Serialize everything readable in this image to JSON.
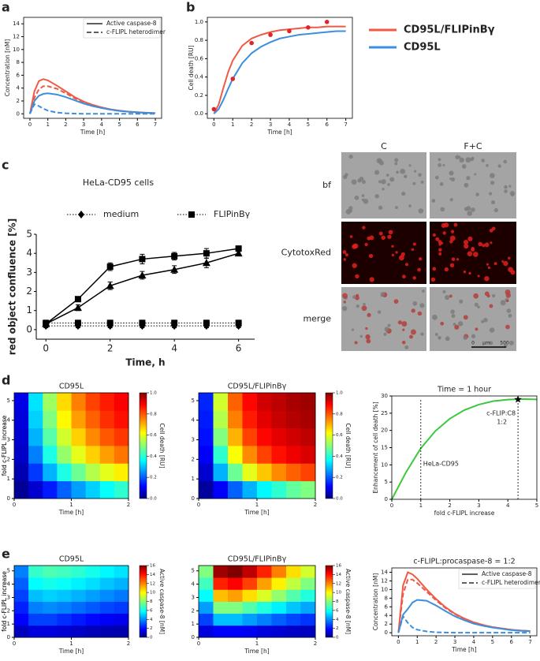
{
  "panel_labels": [
    "a",
    "b",
    "c",
    "d",
    "e"
  ],
  "color_legend": [
    {
      "name": "CD95L/FLIPinBγ",
      "color": "#ef5a45"
    },
    {
      "name": "CD95L",
      "color": "#3b8fdc"
    }
  ],
  "image_panel": {
    "columns": [
      "C",
      "F+C"
    ],
    "rows": [
      "bf",
      "CytotoxRed",
      "merge"
    ],
    "scale_bar": [
      "0",
      "µm",
      "500"
    ]
  },
  "chart_data": [
    {
      "type": "line",
      "xlabel": "Time [h]",
      "ylabel": "Concentration [nM]",
      "x": [
        0,
        0.25,
        0.5,
        0.75,
        1,
        1.5,
        2,
        2.5,
        3,
        3.5,
        4,
        4.5,
        5,
        5.5,
        6,
        6.5,
        7
      ],
      "xlim": [
        -0.35,
        7.35
      ],
      "xticks": [
        0,
        1,
        2,
        3,
        4,
        5,
        6,
        7
      ],
      "ylim": [
        -0.7,
        15
      ],
      "yticks": [
        0,
        2,
        4,
        6,
        8,
        10,
        12,
        14
      ],
      "line_styles": [
        {
          "label": "Active  caspase-8",
          "dash": "solid"
        },
        {
          "label": "c-FLIPL heterodimer",
          "dash": "dashed"
        }
      ],
      "series": [
        {
          "color": "#ef5a45",
          "dash": "solid",
          "values": [
            0,
            3.5,
            5.1,
            5.4,
            5.2,
            4.4,
            3.5,
            2.6,
            1.9,
            1.4,
            1.0,
            0.7,
            0.5,
            0.35,
            0.25,
            0.18,
            0.12
          ]
        },
        {
          "color": "#ef5a45",
          "dash": "dashed",
          "values": [
            0,
            2.5,
            3.8,
            4.3,
            4.3,
            3.9,
            3.2,
            2.4,
            1.8,
            1.3,
            0.9,
            0.65,
            0.45,
            0.32,
            0.22,
            0.15,
            0.1
          ]
        },
        {
          "color": "#3b8fdc",
          "dash": "solid",
          "values": [
            0,
            2.0,
            2.8,
            3.1,
            3.2,
            3.0,
            2.6,
            2.1,
            1.6,
            1.2,
            0.9,
            0.65,
            0.45,
            0.32,
            0.22,
            0.15,
            0.1
          ]
        },
        {
          "color": "#3b8fdc",
          "dash": "dashed",
          "values": [
            0,
            1.5,
            1.2,
            0.8,
            0.5,
            0.2,
            0.08,
            0.03,
            0.01,
            0,
            0,
            0,
            0,
            0,
            0,
            0,
            0
          ]
        }
      ]
    },
    {
      "type": "line",
      "xlabel": "Time [h]",
      "ylabel": "Cell death [RU]",
      "x": [
        0,
        0.25,
        0.5,
        0.75,
        1,
        1.5,
        2,
        2.5,
        3,
        3.5,
        4,
        4.5,
        5,
        5.5,
        6,
        6.5,
        7
      ],
      "xlim": [
        -0.35,
        7.35
      ],
      "xticks": [
        0,
        1,
        2,
        3,
        4,
        5,
        6,
        7
      ],
      "ylim": [
        -0.05,
        1.05
      ],
      "yticks": [
        {
          "value": 0,
          "label": "0.0"
        },
        0.2,
        0.4,
        0.6,
        0.8,
        {
          "value": 1,
          "label": "1.0"
        }
      ],
      "series": [
        {
          "color": "#ef5a45",
          "dash": "solid",
          "values": [
            0,
            0.1,
            0.28,
            0.45,
            0.58,
            0.74,
            0.82,
            0.86,
            0.89,
            0.91,
            0.92,
            0.93,
            0.94,
            0.94,
            0.95,
            0.95,
            0.95
          ]
        },
        {
          "color": "#3b8fdc",
          "dash": "solid",
          "values": [
            0,
            0.05,
            0.15,
            0.27,
            0.38,
            0.55,
            0.66,
            0.73,
            0.78,
            0.82,
            0.84,
            0.86,
            0.87,
            0.88,
            0.89,
            0.9,
            0.9
          ]
        }
      ],
      "points": {
        "color": "#e0252a",
        "x": [
          0,
          1,
          2,
          3,
          4,
          5,
          6
        ],
        "values": [
          0.05,
          0.38,
          0.77,
          0.86,
          0.9,
          0.94,
          1.0
        ]
      }
    },
    {
      "type": "errorbar",
      "title": "HeLa-CD95 cells",
      "xlabel": "Time, h",
      "ylabel": "red object confluence [%]",
      "x": [
        0,
        1,
        2,
        3,
        4,
        5,
        6
      ],
      "xlim": [
        -0.3,
        6.5
      ],
      "xticks": [
        0,
        2,
        4,
        6
      ],
      "ylim": [
        -0.5,
        5
      ],
      "yticks": [
        0,
        1,
        2,
        3,
        4,
        5
      ],
      "series": [
        {
          "name": "medium",
          "marker": "diamond",
          "dash": "dotted",
          "values": [
            0.2,
            0.2,
            0.2,
            0.2,
            0.2,
            0.2,
            0.2
          ],
          "errors": [
            0.1,
            0.1,
            0.1,
            0.1,
            0.1,
            0.1,
            0.1
          ]
        },
        {
          "name": "FLIPinBγ",
          "marker": "square",
          "dash": "dotted",
          "values": [
            0.35,
            0.35,
            0.35,
            0.35,
            0.35,
            0.35,
            0.35
          ],
          "errors": [
            0.15,
            0.15,
            0.15,
            0.15,
            0.15,
            0.15,
            0.15
          ]
        },
        {
          "marker": "square",
          "dash": "solid",
          "values": [
            0.3,
            1.6,
            3.3,
            3.7,
            3.85,
            4.0,
            4.25
          ],
          "errors": [
            0.1,
            0.1,
            0.2,
            0.25,
            0.2,
            0.25,
            0.1
          ]
        },
        {
          "marker": "triangle",
          "dash": "solid",
          "values": [
            0.3,
            1.15,
            2.3,
            2.85,
            3.15,
            3.5,
            4.0
          ],
          "errors": [
            0.1,
            0.15,
            0.2,
            0.2,
            0.2,
            0.25,
            0.1
          ]
        }
      ]
    },
    {
      "type": "heatmap",
      "title": "CD95L",
      "xlabel": "Time [h]",
      "ylabel": "fold c-FLIPL increase",
      "xlim": [
        0,
        2
      ],
      "xticks": [
        0,
        1,
        2
      ],
      "ylim": [
        0,
        5.4
      ],
      "yticks": [
        0,
        1,
        2,
        3,
        4,
        5
      ],
      "x_bins": [
        0,
        0.25,
        0.5,
        0.75,
        1,
        1.25,
        1.5,
        1.75,
        2
      ],
      "y_bins": [
        0,
        0.9,
        1.8,
        2.7,
        3.6,
        4.5,
        5.4
      ],
      "z": [
        [
          0.02,
          0.08,
          0.15,
          0.22,
          0.28,
          0.33,
          0.38,
          0.42
        ],
        [
          0.05,
          0.18,
          0.3,
          0.4,
          0.48,
          0.55,
          0.6,
          0.64
        ],
        [
          0.07,
          0.25,
          0.4,
          0.52,
          0.6,
          0.67,
          0.72,
          0.76
        ],
        [
          0.08,
          0.3,
          0.46,
          0.58,
          0.67,
          0.74,
          0.79,
          0.82
        ],
        [
          0.09,
          0.33,
          0.5,
          0.63,
          0.72,
          0.78,
          0.83,
          0.86
        ],
        [
          0.1,
          0.35,
          0.53,
          0.66,
          0.75,
          0.81,
          0.85,
          0.88
        ]
      ],
      "colorbar": {
        "label": "Cell death [RU]",
        "zlim": [
          0,
          1
        ],
        "ticks": [
          {
            "value": 0,
            "label": "0.0"
          },
          0.2,
          0.4,
          0.6,
          0.8,
          {
            "value": 1,
            "label": "1.0"
          }
        ]
      }
    },
    {
      "type": "heatmap",
      "title": "CD95L/FLIPinBγ",
      "xlabel": "Time [h]",
      "ylabel": "fold c-FLIPL increase",
      "xlim": [
        0,
        2
      ],
      "xticks": [
        0,
        1,
        2
      ],
      "ylim": [
        0,
        5.4
      ],
      "yticks": [
        0,
        1,
        2,
        3,
        4,
        5
      ],
      "x_bins": [
        0,
        0.25,
        0.5,
        0.75,
        1,
        1.25,
        1.5,
        1.75,
        2
      ],
      "y_bins": [
        0,
        0.9,
        1.8,
        2.7,
        3.6,
        4.5,
        5.4
      ],
      "z": [
        [
          0.03,
          0.12,
          0.22,
          0.3,
          0.37,
          0.42,
          0.47,
          0.5
        ],
        [
          0.08,
          0.3,
          0.48,
          0.6,
          0.68,
          0.74,
          0.78,
          0.81
        ],
        [
          0.12,
          0.42,
          0.62,
          0.74,
          0.81,
          0.86,
          0.89,
          0.91
        ],
        [
          0.14,
          0.5,
          0.7,
          0.81,
          0.87,
          0.9,
          0.92,
          0.94
        ],
        [
          0.15,
          0.55,
          0.75,
          0.85,
          0.9,
          0.93,
          0.95,
          0.96
        ],
        [
          0.16,
          0.58,
          0.78,
          0.87,
          0.92,
          0.94,
          0.96,
          0.97
        ]
      ],
      "colorbar": {
        "label": "Cell death [RU]",
        "zlim": [
          0,
          1
        ],
        "ticks": [
          {
            "value": 0,
            "label": "0.0"
          },
          0.2,
          0.4,
          0.6,
          0.8,
          {
            "value": 1,
            "label": "1.0"
          }
        ]
      }
    },
    {
      "type": "line",
      "title": "Time = 1 hour",
      "xlabel": "fold c-FLIPL increase",
      "ylabel": "Enhancement of cell death [%]",
      "x": [
        0,
        0.5,
        1,
        1.5,
        2,
        2.5,
        3,
        3.5,
        4,
        4.5,
        5
      ],
      "xlim": [
        0,
        5
      ],
      "xticks": [
        0,
        1,
        2,
        3,
        4,
        5
      ],
      "ylim": [
        0,
        30
      ],
      "yticks": [
        0,
        5,
        10,
        15,
        20,
        25,
        30
      ],
      "series": [
        {
          "color": "#3cc83c",
          "dash": "solid",
          "values": [
            0,
            8,
            14.8,
            19.8,
            23.4,
            25.9,
            27.5,
            28.5,
            28.95,
            29.1,
            29.0
          ]
        }
      ],
      "vlines": [
        1,
        4.35
      ],
      "star": {
        "x": 4.35,
        "y": 29
      },
      "annotations": [
        "HeLa-CD95",
        "c-FLIP:C8",
        "1:2"
      ]
    },
    {
      "type": "heatmap",
      "title": "CD95L",
      "xlabel": "Time [h]",
      "ylabel": "fold c-FLIPL increase",
      "xlim": [
        0,
        2
      ],
      "xticks": [
        0,
        1,
        2
      ],
      "ylim": [
        0,
        5.4
      ],
      "yticks": [
        0,
        1,
        2,
        3,
        4,
        5
      ],
      "x_bins": [
        0,
        0.25,
        0.5,
        0.75,
        1,
        1.25,
        1.5,
        1.75,
        2
      ],
      "y_bins": [
        0,
        0.9,
        1.8,
        2.7,
        3.6,
        4.5,
        5.4
      ],
      "z": [
        [
          1,
          1.5,
          1.5,
          1.3,
          1.1,
          0.9,
          0.8,
          0.7
        ],
        [
          2,
          3,
          3,
          2.7,
          2.4,
          2.1,
          1.9,
          1.7
        ],
        [
          2.5,
          4,
          4.2,
          4,
          3.7,
          3.4,
          3.1,
          2.9
        ],
        [
          3,
          5,
          5.3,
          5.1,
          4.8,
          4.5,
          4.2,
          3.9
        ],
        [
          3.5,
          6,
          6.3,
          6.1,
          5.8,
          5.5,
          5.1,
          4.8
        ],
        [
          4,
          6.8,
          7.2,
          7,
          6.7,
          6.3,
          5.9,
          5.6
        ]
      ],
      "colorbar": {
        "label": "Active caspase-8 [nM]",
        "zlim": [
          0,
          16
        ],
        "ticks": [
          0,
          2,
          4,
          6,
          8,
          10,
          12,
          14,
          16
        ]
      }
    },
    {
      "type": "heatmap",
      "title": "CD95L/FLIPinBγ",
      "xlabel": "Time [h]",
      "ylabel": "fold c-FLIPL increase",
      "xlim": [
        0,
        2
      ],
      "xticks": [
        0,
        1,
        2
      ],
      "ylim": [
        0,
        5.4
      ],
      "yticks": [
        0,
        1,
        2,
        3,
        4,
        5
      ],
      "x_bins": [
        0,
        0.25,
        0.5,
        0.75,
        1,
        1.25,
        1.5,
        1.75,
        2
      ],
      "y_bins": [
        0,
        0.9,
        1.8,
        2.7,
        3.6,
        4.5,
        5.4
      ],
      "z": [
        [
          1.5,
          2,
          2,
          1.8,
          1.5,
          1.3,
          1.1,
          1
        ],
        [
          3,
          5,
          5,
          4.5,
          4,
          3.5,
          3.1,
          2.8
        ],
        [
          4.5,
          8,
          8,
          7.3,
          6.5,
          5.8,
          5.1,
          4.6
        ],
        [
          6,
          11,
          11.5,
          10.5,
          9.4,
          8.3,
          7.3,
          6.5
        ],
        [
          7,
          13.5,
          14,
          13,
          11.5,
          10.2,
          9,
          8
        ],
        [
          8,
          15.5,
          16,
          15,
          13.5,
          12,
          10.5,
          9.3
        ]
      ],
      "colorbar": {
        "label": "Active caspase-8 [nM]",
        "zlim": [
          0,
          16
        ],
        "ticks": [
          0,
          2,
          4,
          6,
          8,
          10,
          12,
          14,
          16
        ]
      }
    },
    {
      "type": "line",
      "title": "c-FLIPL:procaspase-8 = 1:2",
      "xlabel": "Time [h]",
      "ylabel": "Concentration [nM]",
      "x": [
        0,
        0.25,
        0.5,
        0.75,
        1,
        1.5,
        2,
        2.5,
        3,
        3.5,
        4,
        4.5,
        5,
        5.5,
        6,
        6.5,
        7
      ],
      "xlim": [
        -0.35,
        7.35
      ],
      "xticks": [
        0,
        1,
        2,
        3,
        4,
        5,
        6,
        7
      ],
      "ylim": [
        -0.7,
        15
      ],
      "yticks": [
        0,
        2,
        4,
        6,
        8,
        10,
        12,
        14
      ],
      "line_styles": [
        {
          "label": "Active caspase-8",
          "dash": "solid"
        },
        {
          "label": "c-FLIPL heterodimer",
          "dash": "dashed"
        }
      ],
      "series": [
        {
          "color": "#ef5a45",
          "dash": "solid",
          "values": [
            0,
            11,
            14,
            13.5,
            12.5,
            10,
            7.8,
            5.9,
            4.4,
            3.3,
            2.4,
            1.8,
            1.3,
            1.0,
            0.7,
            0.5,
            0.4
          ]
        },
        {
          "color": "#ef5a45",
          "dash": "dashed",
          "values": [
            0,
            9,
            12.3,
            12.3,
            11.5,
            9.5,
            7.5,
            5.7,
            4.3,
            3.2,
            2.4,
            1.8,
            1.3,
            1.0,
            0.7,
            0.5,
            0.4
          ]
        },
        {
          "color": "#3b8fdc",
          "dash": "solid",
          "values": [
            0,
            4.2,
            5.5,
            7,
            7.6,
            7.4,
            6.3,
            5,
            3.8,
            2.9,
            2.1,
            1.6,
            1.2,
            0.9,
            0.6,
            0.45,
            0.35
          ]
        },
        {
          "color": "#3b8fdc",
          "dash": "dashed",
          "values": [
            0,
            3.8,
            2.3,
            1.2,
            0.7,
            0.3,
            0.1,
            0.05,
            0,
            0,
            0,
            0,
            0,
            0,
            0,
            0,
            0
          ]
        }
      ]
    }
  ]
}
